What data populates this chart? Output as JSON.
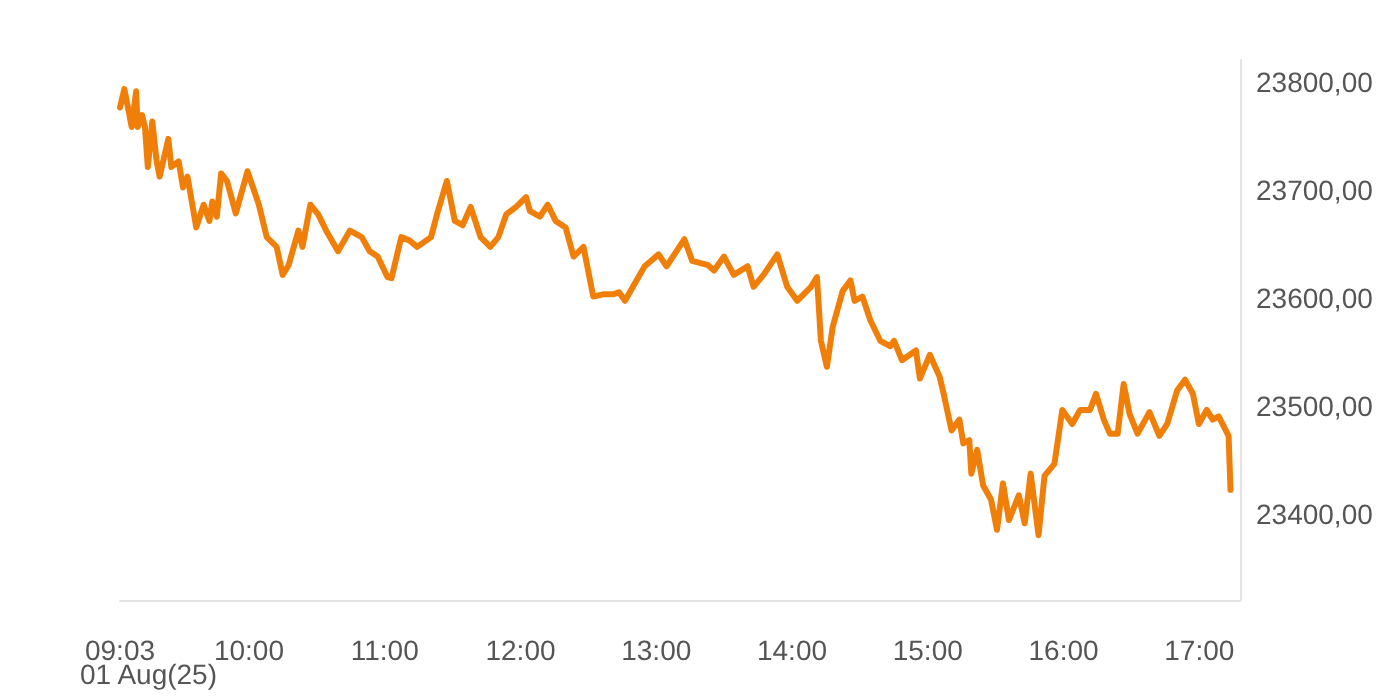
{
  "chart_data": {
    "type": "line",
    "annotations": [
      "01 Aug(25)"
    ],
    "x": [
      9.05,
      9.082,
      9.115,
      9.136,
      9.169,
      9.18,
      9.212,
      9.234,
      9.255,
      9.288,
      9.32,
      9.342,
      9.406,
      9.428,
      9.482,
      9.514,
      9.547,
      9.612,
      9.666,
      9.709,
      9.73,
      9.763,
      9.795,
      9.838,
      9.903,
      9.989,
      10.073,
      10.131,
      10.204,
      10.248,
      10.292,
      10.364,
      10.394,
      10.452,
      10.51,
      10.569,
      10.656,
      10.743,
      10.831,
      10.889,
      10.948,
      11.02,
      11.05,
      11.122,
      11.181,
      11.239,
      11.341,
      11.385,
      11.458,
      11.516,
      11.574,
      11.633,
      11.706,
      11.778,
      11.837,
      11.895,
      11.968,
      12.041,
      12.07,
      12.143,
      12.201,
      12.259,
      12.332,
      12.391,
      12.464,
      12.536,
      12.609,
      12.682,
      12.726,
      12.77,
      12.828,
      12.915,
      13.017,
      13.076,
      13.207,
      13.265,
      13.382,
      13.426,
      13.499,
      13.571,
      13.673,
      13.717,
      13.79,
      13.892,
      13.965,
      14.038,
      14.14,
      14.184,
      14.213,
      14.257,
      14.3,
      14.373,
      14.431,
      14.461,
      14.519,
      14.577,
      14.65,
      14.723,
      14.752,
      14.81,
      14.913,
      14.942,
      15.015,
      15.087,
      15.117,
      15.175,
      15.233,
      15.262,
      15.306,
      15.321,
      15.364,
      15.408,
      15.466,
      15.51,
      15.554,
      15.598,
      15.671,
      15.714,
      15.758,
      15.816,
      15.86,
      15.933,
      15.991,
      16.064,
      16.122,
      16.195,
      16.239,
      16.297,
      16.341,
      16.399,
      16.443,
      16.487,
      16.545,
      16.633,
      16.706,
      16.764,
      16.837,
      16.895,
      16.953,
      16.997,
      17.055,
      17.099,
      17.143,
      17.216,
      17.23
    ],
    "series": [
      {
        "color": "#f07f09",
        "values": [
          23776,
          23793,
          23772,
          23758,
          23791,
          23758,
          23769,
          23758,
          23721,
          23763,
          23726,
          23712,
          23747,
          23721,
          23726,
          23702,
          23712,
          23665,
          23686,
          23671,
          23689,
          23675,
          23715,
          23708,
          23678,
          23717,
          23686,
          23656,
          23647,
          23621,
          23630,
          23662,
          23647,
          23686,
          23677,
          23662,
          23643,
          23662,
          23656,
          23643,
          23638,
          23619,
          23618,
          23656,
          23653,
          23647,
          23656,
          23677,
          23708,
          23671,
          23667,
          23684,
          23656,
          23647,
          23656,
          23677,
          23684,
          23693,
          23680,
          23675,
          23686,
          23671,
          23665,
          23638,
          23647,
          23601,
          23603,
          23603,
          23605,
          23597,
          23610,
          23629,
          23640,
          23629,
          23654,
          23634,
          23630,
          23625,
          23638,
          23621,
          23629,
          23610,
          23621,
          23640,
          23610,
          23597,
          23610,
          23619,
          23560,
          23536,
          23573,
          23606,
          23616,
          23597,
          23601,
          23579,
          23560,
          23555,
          23560,
          23542,
          23551,
          23525,
          23547,
          23527,
          23511,
          23477,
          23487,
          23465,
          23468,
          23437,
          23459,
          23426,
          23413,
          23385,
          23428,
          23394,
          23417,
          23391,
          23437,
          23380,
          23435,
          23446,
          23496,
          23483,
          23496,
          23496,
          23511,
          23487,
          23474,
          23474,
          23520,
          23492,
          23474,
          23494,
          23472,
          23483,
          23514,
          23524,
          23511,
          23483,
          23496,
          23487,
          23490,
          23472,
          23422
        ]
      }
    ],
    "xticks": [
      {
        "value": 9.05,
        "label": "09:03"
      },
      {
        "value": 10,
        "label": "10:00"
      },
      {
        "value": 11,
        "label": "11:00"
      },
      {
        "value": 12,
        "label": "12:00"
      },
      {
        "value": 13,
        "label": "13:00"
      },
      {
        "value": 14,
        "label": "14:00"
      },
      {
        "value": 15,
        "label": "15:00"
      },
      {
        "value": 16,
        "label": "16:00"
      },
      {
        "value": 17,
        "label": "17:00"
      }
    ],
    "yticks": [
      {
        "value": 23400,
        "label": "23400,00"
      },
      {
        "value": 23500,
        "label": "23500,00"
      },
      {
        "value": 23600,
        "label": "23600,00"
      },
      {
        "value": 23700,
        "label": "23700,00"
      },
      {
        "value": 23800,
        "label": "23800,00"
      }
    ],
    "xlim": [
      9.05,
      17.3
    ],
    "ylim": [
      23320,
      23820
    ],
    "grid": false,
    "marker": "none",
    "line_style": "solid"
  }
}
